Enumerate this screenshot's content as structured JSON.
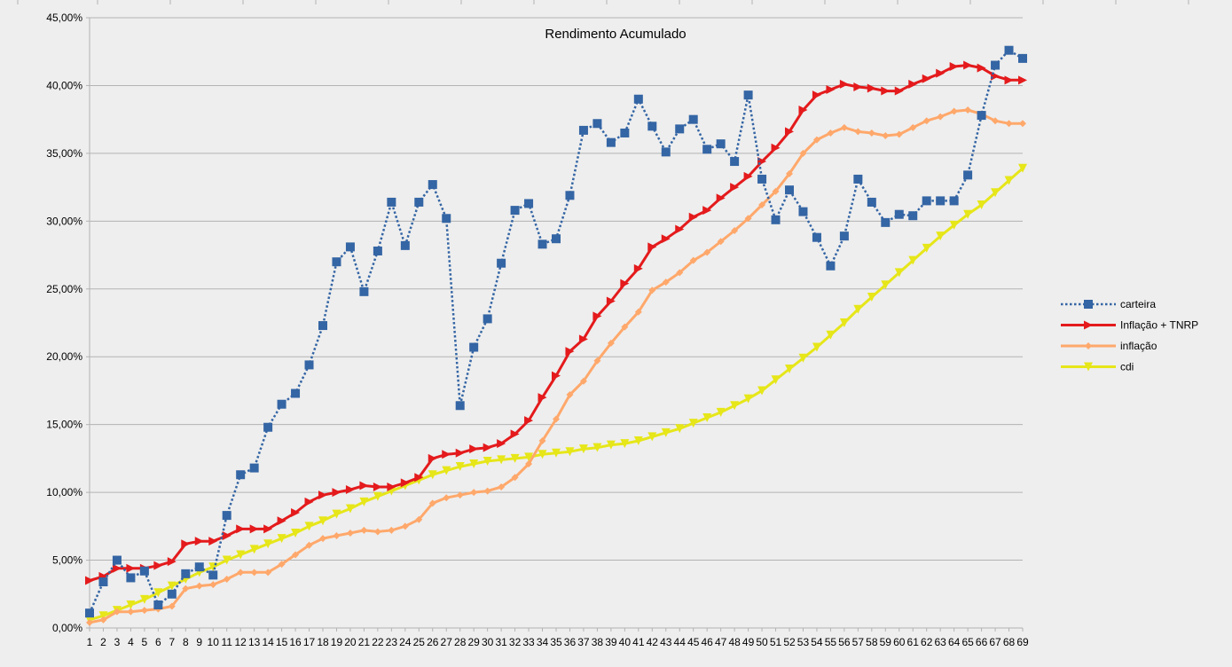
{
  "chart_data": {
    "type": "line",
    "title": "Rendimento Acumulado",
    "xlabel": "",
    "ylabel": "",
    "ylim": [
      0,
      45
    ],
    "y_tick_values": [
      0,
      5,
      10,
      15,
      20,
      25,
      30,
      35,
      40,
      45
    ],
    "y_tick_labels": [
      "0,00%",
      "5,00%",
      "10,00%",
      "15,00%",
      "20,00%",
      "25,00%",
      "30,00%",
      "35,00%",
      "40,00%",
      "45,00%"
    ],
    "categories": [
      "1",
      "2",
      "3",
      "4",
      "5",
      "6",
      "7",
      "8",
      "9",
      "10",
      "11",
      "12",
      "13",
      "14",
      "15",
      "16",
      "17",
      "18",
      "19",
      "20",
      "21",
      "22",
      "23",
      "24",
      "25",
      "26",
      "27",
      "28",
      "29",
      "30",
      "31",
      "32",
      "33",
      "34",
      "35",
      "36",
      "37",
      "38",
      "39",
      "40",
      "41",
      "42",
      "43",
      "44",
      "45",
      "46",
      "47",
      "48",
      "49",
      "50",
      "51",
      "52",
      "53",
      "54",
      "55",
      "56",
      "57",
      "58",
      "59",
      "60",
      "61",
      "62",
      "63",
      "64",
      "65",
      "66",
      "67",
      "68",
      "69"
    ],
    "grid": true,
    "legend_position": "right",
    "series": [
      {
        "name": "carteira",
        "color": "#3465a4",
        "marker": "square",
        "line_style": "dotted",
        "values": [
          1.1,
          3.4,
          5.0,
          3.7,
          4.2,
          1.7,
          2.5,
          4.0,
          4.5,
          3.9,
          8.3,
          11.3,
          11.8,
          14.8,
          16.5,
          17.3,
          19.4,
          22.3,
          27.0,
          28.1,
          24.8,
          27.8,
          31.4,
          28.2,
          31.4,
          32.7,
          30.2,
          16.4,
          20.7,
          22.8,
          26.9,
          30.8,
          31.3,
          28.3,
          28.7,
          31.9,
          36.7,
          37.2,
          35.8,
          36.5,
          39.0,
          37.0,
          35.1,
          36.8,
          37.5,
          35.3,
          35.7,
          34.4,
          39.3,
          33.1,
          30.1,
          32.3,
          30.7,
          28.8,
          26.7,
          28.9,
          33.1,
          31.4,
          29.9,
          30.5,
          30.4,
          31.5,
          31.5,
          31.5,
          33.4,
          37.8,
          41.5,
          42.6,
          42.0
        ]
      },
      {
        "name": "Inflação + TNRP",
        "color": "#e41a1c",
        "marker": "triangle-right",
        "line_style": "solid",
        "values": [
          3.5,
          3.8,
          4.4,
          4.4,
          4.4,
          4.6,
          4.9,
          6.2,
          6.4,
          6.4,
          6.8,
          7.3,
          7.3,
          7.3,
          7.9,
          8.5,
          9.3,
          9.8,
          10.0,
          10.2,
          10.5,
          10.4,
          10.4,
          10.7,
          11.1,
          12.5,
          12.8,
          12.9,
          13.2,
          13.3,
          13.6,
          14.3,
          15.3,
          17.0,
          18.6,
          20.4,
          21.3,
          23.0,
          24.1,
          25.4,
          26.5,
          28.1,
          28.7,
          29.4,
          30.3,
          30.8,
          31.7,
          32.5,
          33.3,
          34.4,
          35.4,
          36.6,
          38.2,
          39.3,
          39.7,
          40.1,
          39.9,
          39.8,
          39.6,
          39.6,
          40.1,
          40.5,
          40.9,
          41.4,
          41.5,
          41.3,
          40.7,
          40.4,
          40.4
        ]
      },
      {
        "name": "inflação",
        "color": "#ffa86b",
        "marker": "diamond",
        "line_style": "solid",
        "values": [
          0.4,
          0.6,
          1.2,
          1.2,
          1.3,
          1.4,
          1.6,
          2.9,
          3.1,
          3.2,
          3.6,
          4.1,
          4.1,
          4.1,
          4.7,
          5.4,
          6.1,
          6.6,
          6.8,
          7.0,
          7.2,
          7.1,
          7.2,
          7.5,
          8.0,
          9.2,
          9.6,
          9.8,
          10.0,
          10.1,
          10.4,
          11.1,
          12.1,
          13.8,
          15.4,
          17.2,
          18.2,
          19.7,
          21.0,
          22.2,
          23.3,
          24.9,
          25.5,
          26.2,
          27.1,
          27.7,
          28.5,
          29.3,
          30.2,
          31.2,
          32.2,
          33.5,
          35.0,
          36.0,
          36.5,
          36.9,
          36.6,
          36.5,
          36.3,
          36.4,
          36.9,
          37.4,
          37.7,
          38.1,
          38.2,
          37.9,
          37.4,
          37.2,
          37.2
        ]
      },
      {
        "name": "cdi",
        "color": "#e6e619",
        "marker": "triangle-down",
        "line_style": "solid",
        "values": [
          0.6,
          0.9,
          1.3,
          1.7,
          2.1,
          2.6,
          3.1,
          3.6,
          4.1,
          4.5,
          5.0,
          5.4,
          5.8,
          6.2,
          6.6,
          7.0,
          7.5,
          7.9,
          8.4,
          8.8,
          9.3,
          9.7,
          10.1,
          10.5,
          10.9,
          11.3,
          11.6,
          11.9,
          12.1,
          12.3,
          12.4,
          12.5,
          12.6,
          12.8,
          12.9,
          13.0,
          13.2,
          13.3,
          13.5,
          13.6,
          13.8,
          14.1,
          14.4,
          14.7,
          15.1,
          15.5,
          15.9,
          16.4,
          16.9,
          17.5,
          18.3,
          19.1,
          19.9,
          20.7,
          21.6,
          22.5,
          23.5,
          24.4,
          25.3,
          26.2,
          27.1,
          28.0,
          28.9,
          29.7,
          30.5,
          31.2,
          32.1,
          33.0,
          33.9
        ]
      }
    ]
  }
}
